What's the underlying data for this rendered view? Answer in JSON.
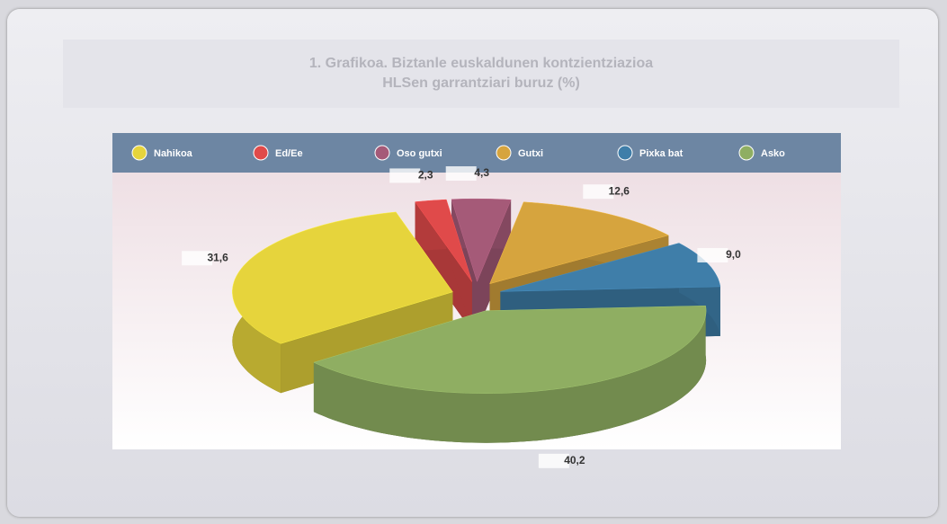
{
  "chart_data": {
    "type": "pie",
    "title": "1. Grafikoa. Biztanle euskaldunen kontzientziazioa HLSen garrantziari buruz (%)",
    "categories": [
      "Nahikoa",
      "Ed/Ee",
      "Oso gutxi",
      "Gutxi",
      "Pixka bat",
      "Asko"
    ],
    "values": [
      31.6,
      2.3,
      4.3,
      12.6,
      9.0,
      40.2
    ],
    "value_labels": [
      "31,6",
      "2,3",
      "4,3",
      "12,6",
      "9,0",
      "40,2"
    ],
    "colors": [
      "#e6d43c",
      "#e04a4a",
      "#a55a78",
      "#d6a43e",
      "#3f7ea9",
      "#8fae62"
    ],
    "legend": "top"
  }
}
